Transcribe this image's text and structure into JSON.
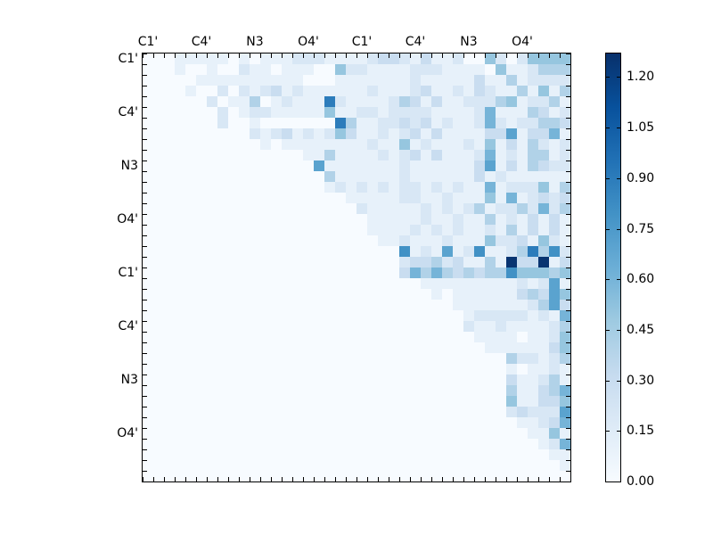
{
  "chart_data": {
    "type": "heatmap",
    "title": "",
    "xlabel": "",
    "ylabel": "",
    "grid_size": [
      40,
      40
    ],
    "x_tick_labels": [
      "C1'",
      "C4'",
      "N3",
      "O4'",
      "C1'",
      "C4'",
      "N3",
      "O4'"
    ],
    "y_tick_labels": [
      "C1'",
      "C4'",
      "N3",
      "O4'",
      "C1'",
      "C4'",
      "N3",
      "O4'"
    ],
    "label_positions": [
      0,
      5,
      10,
      15,
      20,
      25,
      30,
      35
    ],
    "colormap": "Blues",
    "colorbar": {
      "vmin": 0.0,
      "vmax": 1.27,
      "ticks": [
        "0.00",
        "0.15",
        "0.30",
        "0.45",
        "0.60",
        "0.75",
        "0.90",
        "1.05",
        "1.20"
      ],
      "tick_values": [
        0.0,
        0.15,
        0.3,
        0.45,
        0.6,
        0.75,
        0.9,
        1.05,
        1.2
      ]
    },
    "value_encoding": "each char = level; 0-9 => value = level*0.1, a => 1.0, b => 1.1, c => 1.25",
    "rows": [
      "0001111101011122211112332131120052025555",
      "0001001002110111005221111222111105112444",
      "0000011111111110001111111211111311412222",
      "0000100202123121111112111231121321141514",
      "0000002011401211192111124313112224512241",
      "0000000201221111151122122221111261114312",
      "0000000200100000009411223231211262122443",
      "0000000000212312125311212313111133713361",
      "0000000000010111111112115121112151314212",
      "0000000000000001141111212313111261214412",
      "0000000000000000711111112111111371314322",
      "0000000000000000041111112111111312111111",
      "0000000000000000012121212212121161222514",
      "0000000000000000000111112211211151612323",
      "0000000000000000000021111121212412242624",
      "0000000000000000000001111121121141213131",
      "0000000000000000000001111212121121413131",
      "0000000000000000000000112111211152231521",
      "0000000000000000000000008121712811249482",
      "0000000000000000000000002334231141c33c13",
      "0000000000000000000000003646434344855545",
      "0000000000000000000000000011111111121271",
      "0000000000000000000000000001011111134375",
      "0000000000000000000000000000011111112473",
      "0000000000000000000000000000001222221216",
      "0000000000000000000000000000002112111124",
      "0000000000000000000000000000000111101125",
      "0000000000000000000000000000000011111135",
      "0000000000000000000000000000000000422124",
      "0000000000000000000000000000000000101121",
      "0000000000000000000000000000000000311241",
      "0000000000000000000000000000000000411346",
      "0000000000000000000000000000000000511335",
      "0000000000000000000000000000000000232227",
      "0000000000000000000000000000000000011236",
      "0000000000000000000000000000000000001151",
      "0000000000000000000000000000000000000126",
      "0000000000000000000000000000000000000011",
      "0000000000000000000000000000000000000001",
      "0000000000000000000000000000000000000000"
    ]
  }
}
